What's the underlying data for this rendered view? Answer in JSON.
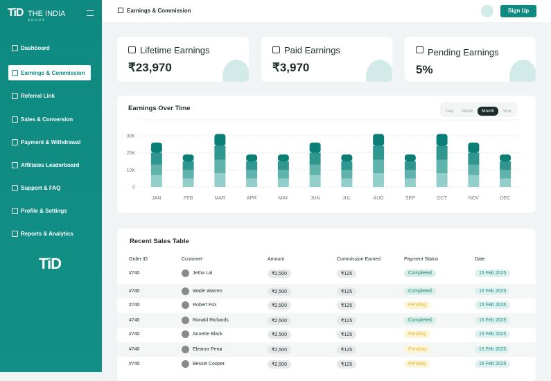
{
  "sidebar": {
    "logo": "TiD",
    "brand": "THE INDIA",
    "brand_sub": "DECOR",
    "nav": [
      "Dashboard",
      "Earnings & Commission",
      "Referral Link",
      "Sales & Conversion",
      "Payment & Withdrawal",
      "Affiliates Leaderboard",
      "Support & FAQ",
      "Profile & Settings",
      "Reports & Analytics"
    ]
  },
  "header": {
    "breadcrumb": "Earnings & Commission",
    "button": "Sign Up"
  },
  "cards": [
    {
      "title": "Lifetime Earnings",
      "value": "₹23,970"
    },
    {
      "title": "Paid Earnings",
      "value": "₹3,970"
    },
    {
      "title": "Pending Earnings",
      "value": "5%"
    }
  ],
  "chart": {
    "type": "bar",
    "title": "Earnings Over Time",
    "ranges": [
      "Day",
      "Week",
      "Month",
      "Year"
    ],
    "categories": [
      "JAN",
      "FEB",
      "MAR",
      "APR",
      "MAY",
      "JUN",
      "JUL",
      "AUG",
      "SEP",
      "OCT",
      "NOV",
      "DEC"
    ],
    "series": [
      {
        "color": "#93cfca",
        "values": [
          7000,
          5000,
          8000,
          5000,
          5000,
          7000,
          5000,
          8000,
          5000,
          8000,
          7000,
          5000
        ]
      },
      {
        "color": "#5fb3ac",
        "values": [
          6000,
          5000,
          8000,
          5000,
          5000,
          6000,
          5000,
          8000,
          5000,
          8000,
          6000,
          5000
        ]
      },
      {
        "color": "#2f978f",
        "values": [
          7000,
          5000,
          8000,
          5000,
          5000,
          7000,
          5000,
          8000,
          5000,
          8000,
          7000,
          5000
        ]
      },
      {
        "color": "#0b7e75",
        "values": [
          6000,
          4000,
          7000,
          4000,
          4000,
          6000,
          4000,
          7000,
          4000,
          7000,
          6000,
          4000
        ]
      }
    ],
    "ylim": [
      0,
      34000
    ],
    "yticks": [
      0,
      {
        "value": 10000,
        "label": "10K"
      },
      {
        "value": 20000,
        "label": "20K"
      },
      {
        "value": 30000,
        "label": "30K"
      }
    ],
    "grid": true
  },
  "table": {
    "title": "Recent Sales Table",
    "columns": [
      "Order ID",
      "Customer",
      "Amount",
      "Commission Earned",
      "Payment Status",
      "Date"
    ],
    "rows": [
      [
        "#740",
        "Jetha Lal",
        "₹2,500",
        "₹125",
        "Completed",
        "15 Feb 2025"
      ],
      [
        "#740",
        "Wade Warren",
        "₹2,500",
        "₹125",
        "Completed",
        "15 Feb 2025"
      ],
      [
        "#740",
        "Robert Fox",
        "₹2,500",
        "₹125",
        "Pending",
        "15 Feb 2025"
      ],
      [
        "#740",
        "Ronald Richards",
        "₹2,500",
        "₹125",
        "Completed",
        "15 Feb 2025"
      ],
      [
        "#740",
        "Annette Black",
        "₹2,500",
        "₹125",
        "Pending",
        "15 Feb 2025"
      ],
      [
        "#740",
        "Eleanor Pena",
        "₹2,500",
        "₹125",
        "Pending",
        "15 Feb 2025"
      ],
      [
        "#740",
        "Bessie Cooper",
        "₹2,500",
        "₹125",
        "Pending",
        "15 Feb 2025"
      ]
    ]
  }
}
